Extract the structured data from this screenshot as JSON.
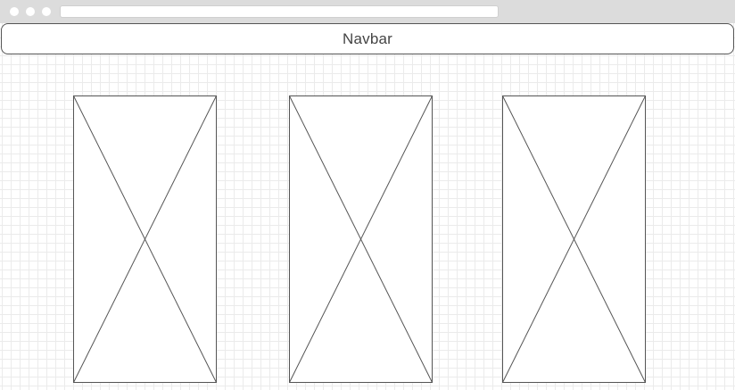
{
  "navbar": {
    "label": "Navbar"
  },
  "placeholders": [
    {
      "name": "image-placeholder-1",
      "icon": "crossed-box-icon"
    },
    {
      "name": "image-placeholder-2",
      "icon": "crossed-box-icon"
    },
    {
      "name": "image-placeholder-3",
      "icon": "crossed-box-icon"
    }
  ],
  "colors": {
    "chrome": "#dcdcdc",
    "stroke": "#555555",
    "grid": "#ebebeb",
    "text": "#444444"
  }
}
